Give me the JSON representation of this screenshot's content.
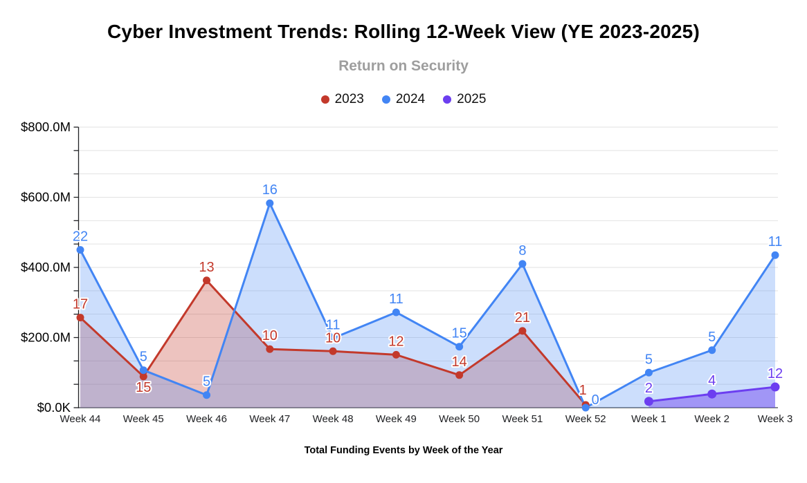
{
  "page": {
    "background": "#ffffff"
  },
  "chart_data": {
    "type": "area",
    "title": "Cyber Investment Trends: Rolling 12-Week View (YE 2023-2025)",
    "subtitle": "Return on Security",
    "xlabel": "Total Funding Events by Week of the Year",
    "legend_position": "top",
    "grid": "horizontal-only",
    "categories": [
      "Week 44",
      "Week 45",
      "Week 46",
      "Week 47",
      "Week 48",
      "Week 49",
      "Week 50",
      "Week 51",
      "Week 52",
      "Week 1",
      "Week 2",
      "Week 3"
    ],
    "y_axis": {
      "min_musd": 0,
      "max_musd": 800,
      "major_ticks": [
        {
          "value_musd": 0,
          "label": "$0.0K"
        },
        {
          "value_musd": 200,
          "label": "$200.0M"
        },
        {
          "value_musd": 400,
          "label": "$400.0M"
        },
        {
          "value_musd": 600,
          "label": "$600.0M"
        },
        {
          "value_musd": 800,
          "label": "$800.0M"
        }
      ],
      "minor_gridlines_per_major": 3
    },
    "series": [
      {
        "name": "2023",
        "color": "#c3392b",
        "fill": "rgba(195,57,43,0.30)",
        "point_labels": [
          17,
          15,
          13,
          10,
          10,
          12,
          14,
          21,
          1,
          null,
          null,
          null
        ],
        "values_musd_est": [
          257,
          89,
          363,
          167,
          161,
          151,
          93,
          219,
          8,
          null,
          null,
          null
        ]
      },
      {
        "name": "2024",
        "color": "#4285f4",
        "fill": "rgba(66,133,244,0.27)",
        "point_labels": [
          22,
          5,
          5,
          16,
          11,
          11,
          15,
          8,
          0,
          5,
          5,
          11
        ],
        "values_musd_est": [
          450,
          107,
          36,
          583,
          198,
          272,
          174,
          410,
          0,
          100,
          164,
          435
        ]
      },
      {
        "name": "2025",
        "color": "#6c3ef0",
        "fill": "rgba(108,62,240,0.45)",
        "point_labels": [
          null,
          null,
          null,
          null,
          null,
          null,
          null,
          null,
          null,
          2,
          4,
          12
        ],
        "values_musd_est": [
          null,
          null,
          null,
          null,
          null,
          null,
          null,
          null,
          null,
          18,
          39,
          59
        ]
      }
    ],
    "label_offset_overrides": {
      "2023": {
        "1": [
          0,
          35
        ],
        "8": [
          -4,
          -2
        ]
      },
      "2024": {
        "8": [
          14,
          8
        ]
      }
    },
    "colors": {
      "gridline": "#e2e2e2",
      "axis_line": "#202124",
      "baseline": "#5f6368",
      "tick_label": "#000000",
      "category_label": "#202124"
    }
  }
}
